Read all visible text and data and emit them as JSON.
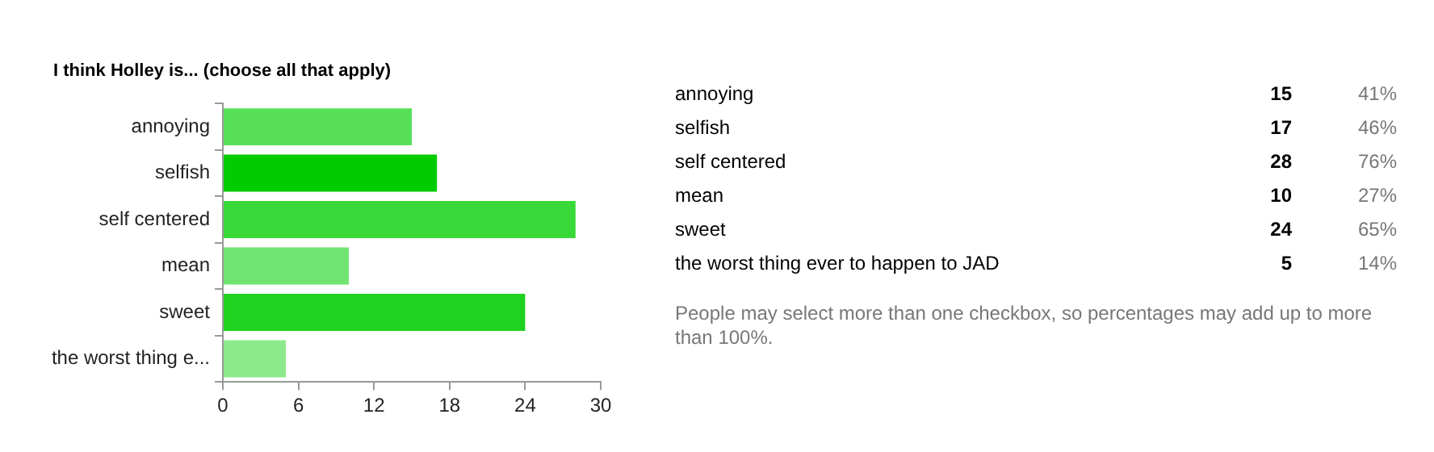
{
  "chart_data": [
    {
      "type": "bar",
      "orientation": "horizontal",
      "title": "I think Holley is... (choose all that apply)",
      "categories": [
        "annoying",
        "selfish",
        "self centered",
        "mean",
        "sweet",
        "the worst thing e..."
      ],
      "values": [
        15,
        17,
        28,
        10,
        24,
        5
      ],
      "colors": [
        "#57df57",
        "#00cc00",
        "#38d938",
        "#70e370",
        "#1fd21f",
        "#8ce98c"
      ],
      "xlim": [
        0,
        30
      ],
      "xticks": [
        0,
        6,
        12,
        18,
        24,
        30
      ],
      "grid": false,
      "legend": false
    },
    {
      "type": "other",
      "categories": [
        "annoying",
        "selfish",
        "self centered",
        "mean",
        "sweet",
        "the worst thing ever to happen to JAD"
      ],
      "data_labels": true,
      "series": [
        {
          "values": [
            15,
            17,
            28,
            10,
            24,
            5
          ]
        },
        {
          "values": [
            41,
            46,
            76,
            27,
            65,
            14
          ],
          "value_labels": [
            "41%",
            "46%",
            "76%",
            "27%",
            "65%",
            "14%"
          ]
        }
      ],
      "annotations": [
        "People may select more than one checkbox, so percentages may add up to more than 100%."
      ]
    }
  ]
}
